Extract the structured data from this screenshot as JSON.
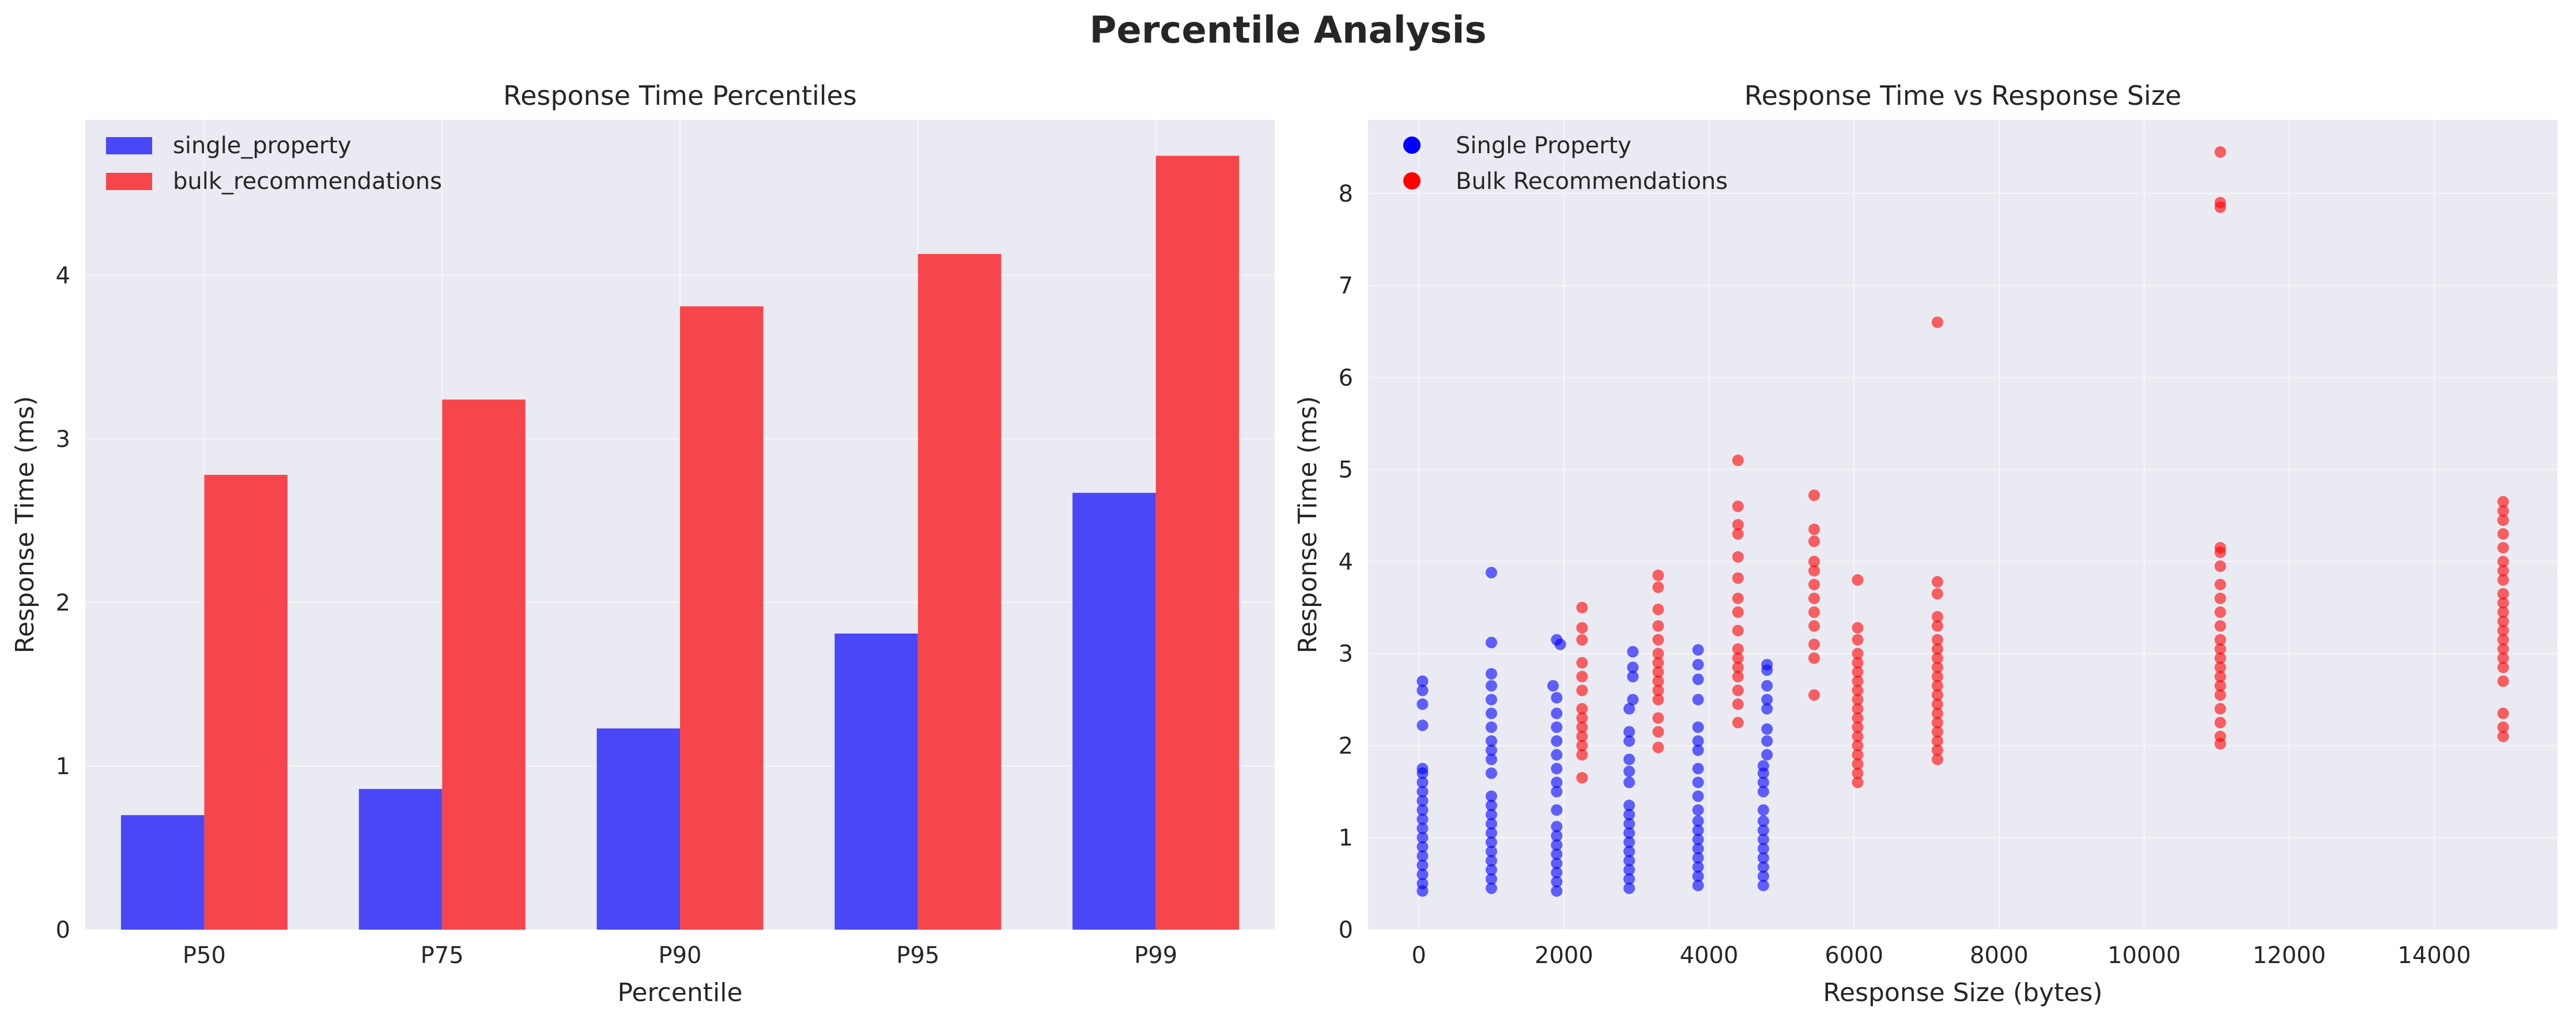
{
  "figure": {
    "title": "Percentile Analysis"
  },
  "chart_data": [
    {
      "type": "bar",
      "title": "Response Time Percentiles",
      "xlabel": "Percentile",
      "ylabel": "Response Time (ms)",
      "categories": [
        "P50",
        "P75",
        "P90",
        "P95",
        "P99"
      ],
      "series": [
        {
          "name": "single_property",
          "color": "#4a47f7",
          "values": [
            0.7,
            0.86,
            1.23,
            1.81,
            2.67
          ]
        },
        {
          "name": "bulk_recommendations",
          "color": "#f7454c",
          "values": [
            2.78,
            3.24,
            3.81,
            4.13,
            4.73
          ]
        }
      ],
      "ylim": [
        0,
        4.95
      ],
      "yticks": [
        0,
        1,
        2,
        3,
        4
      ],
      "grid": true,
      "legend": "upper-left"
    },
    {
      "type": "scatter",
      "title": "Response Time vs Response Size",
      "xlabel": "Response Size (bytes)",
      "ylabel": "Response Time (ms)",
      "xlim": [
        -700,
        15700
      ],
      "ylim": [
        0,
        8.8
      ],
      "xticks": [
        0,
        2000,
        4000,
        6000,
        8000,
        10000,
        12000,
        14000
      ],
      "yticks": [
        0,
        1,
        2,
        3,
        4,
        5,
        6,
        7,
        8
      ],
      "grid": true,
      "legend": "upper-left",
      "series": [
        {
          "name": "Single Property",
          "color": "#0000ff",
          "points": [
            [
              50,
              0.42
            ],
            [
              50,
              0.5
            ],
            [
              50,
              0.6
            ],
            [
              50,
              0.7
            ],
            [
              50,
              0.8
            ],
            [
              50,
              0.9
            ],
            [
              50,
              1.0
            ],
            [
              50,
              1.1
            ],
            [
              50,
              1.2
            ],
            [
              50,
              1.3
            ],
            [
              50,
              1.4
            ],
            [
              50,
              1.5
            ],
            [
              50,
              1.6
            ],
            [
              50,
              1.7
            ],
            [
              50,
              1.75
            ],
            [
              50,
              2.22
            ],
            [
              50,
              2.45
            ],
            [
              50,
              2.6
            ],
            [
              50,
              2.7
            ],
            [
              1000,
              0.45
            ],
            [
              1000,
              0.55
            ],
            [
              1000,
              0.65
            ],
            [
              1000,
              0.75
            ],
            [
              1000,
              0.85
            ],
            [
              1000,
              0.95
            ],
            [
              1000,
              1.05
            ],
            [
              1000,
              1.15
            ],
            [
              1000,
              1.25
            ],
            [
              1000,
              1.35
            ],
            [
              1000,
              1.45
            ],
            [
              1000,
              1.7
            ],
            [
              1000,
              1.85
            ],
            [
              1000,
              1.95
            ],
            [
              1000,
              2.05
            ],
            [
              1000,
              2.2
            ],
            [
              1000,
              2.35
            ],
            [
              1000,
              2.5
            ],
            [
              1000,
              2.65
            ],
            [
              1000,
              2.78
            ],
            [
              1000,
              3.12
            ],
            [
              1000,
              3.88
            ],
            [
              1900,
              0.42
            ],
            [
              1900,
              0.52
            ],
            [
              1900,
              0.62
            ],
            [
              1900,
              0.72
            ],
            [
              1900,
              0.82
            ],
            [
              1900,
              0.92
            ],
            [
              1900,
              1.02
            ],
            [
              1900,
              1.12
            ],
            [
              1900,
              1.3
            ],
            [
              1900,
              1.5
            ],
            [
              1900,
              1.6
            ],
            [
              1900,
              1.75
            ],
            [
              1900,
              1.9
            ],
            [
              1900,
              2.05
            ],
            [
              1900,
              2.2
            ],
            [
              1900,
              2.35
            ],
            [
              1900,
              2.52
            ],
            [
              1900,
              3.15
            ],
            [
              1950,
              3.1
            ],
            [
              1850,
              2.65
            ],
            [
              2900,
              0.45
            ],
            [
              2900,
              0.55
            ],
            [
              2900,
              0.65
            ],
            [
              2900,
              0.75
            ],
            [
              2900,
              0.85
            ],
            [
              2900,
              0.95
            ],
            [
              2900,
              1.05
            ],
            [
              2900,
              1.15
            ],
            [
              2900,
              1.25
            ],
            [
              2900,
              1.35
            ],
            [
              2900,
              1.6
            ],
            [
              2900,
              1.72
            ],
            [
              2900,
              1.85
            ],
            [
              2900,
              2.05
            ],
            [
              2900,
              2.15
            ],
            [
              2900,
              2.4
            ],
            [
              2950,
              2.5
            ],
            [
              2950,
              2.75
            ],
            [
              2950,
              2.85
            ],
            [
              2950,
              3.02
            ],
            [
              3850,
              0.48
            ],
            [
              3850,
              0.58
            ],
            [
              3850,
              0.68
            ],
            [
              3850,
              0.78
            ],
            [
              3850,
              0.88
            ],
            [
              3850,
              0.98
            ],
            [
              3850,
              1.08
            ],
            [
              3850,
              1.18
            ],
            [
              3850,
              1.3
            ],
            [
              3850,
              1.45
            ],
            [
              3850,
              1.6
            ],
            [
              3850,
              1.75
            ],
            [
              3850,
              1.95
            ],
            [
              3850,
              2.05
            ],
            [
              3850,
              2.2
            ],
            [
              3850,
              2.5
            ],
            [
              3850,
              2.72
            ],
            [
              3850,
              2.88
            ],
            [
              3850,
              3.04
            ],
            [
              4750,
              0.48
            ],
            [
              4750,
              0.58
            ],
            [
              4750,
              0.68
            ],
            [
              4750,
              0.78
            ],
            [
              4750,
              0.88
            ],
            [
              4750,
              0.98
            ],
            [
              4750,
              1.08
            ],
            [
              4750,
              1.18
            ],
            [
              4750,
              1.3
            ],
            [
              4750,
              1.5
            ],
            [
              4750,
              1.6
            ],
            [
              4750,
              1.7
            ],
            [
              4750,
              1.78
            ],
            [
              4800,
              1.9
            ],
            [
              4800,
              2.05
            ],
            [
              4800,
              2.18
            ],
            [
              4800,
              2.4
            ],
            [
              4800,
              2.5
            ],
            [
              4800,
              2.65
            ],
            [
              4800,
              2.82
            ],
            [
              4800,
              2.88
            ]
          ]
        },
        {
          "name": "Bulk Recommendations",
          "color": "#ff0000",
          "points": [
            [
              2250,
              1.65
            ],
            [
              2250,
              1.9
            ],
            [
              2250,
              2.0
            ],
            [
              2250,
              2.1
            ],
            [
              2250,
              2.2
            ],
            [
              2250,
              2.3
            ],
            [
              2250,
              2.4
            ],
            [
              2250,
              2.6
            ],
            [
              2250,
              2.75
            ],
            [
              2250,
              2.9
            ],
            [
              2250,
              3.15
            ],
            [
              2250,
              3.28
            ],
            [
              2250,
              3.5
            ],
            [
              3300,
              1.98
            ],
            [
              3300,
              2.15
            ],
            [
              3300,
              2.3
            ],
            [
              3300,
              2.5
            ],
            [
              3300,
              2.6
            ],
            [
              3300,
              2.7
            ],
            [
              3300,
              2.8
            ],
            [
              3300,
              2.9
            ],
            [
              3300,
              3.0
            ],
            [
              3300,
              3.15
            ],
            [
              3300,
              3.3
            ],
            [
              3300,
              3.48
            ],
            [
              3300,
              3.72
            ],
            [
              3300,
              3.85
            ],
            [
              4400,
              2.25
            ],
            [
              4400,
              2.45
            ],
            [
              4400,
              2.6
            ],
            [
              4400,
              2.75
            ],
            [
              4400,
              2.85
            ],
            [
              4400,
              2.95
            ],
            [
              4400,
              3.05
            ],
            [
              4400,
              3.25
            ],
            [
              4400,
              3.45
            ],
            [
              4400,
              3.6
            ],
            [
              4400,
              3.82
            ],
            [
              4400,
              4.05
            ],
            [
              4400,
              4.3
            ],
            [
              4400,
              4.4
            ],
            [
              4400,
              4.6
            ],
            [
              4400,
              5.1
            ],
            [
              5450,
              2.55
            ],
            [
              5450,
              2.95
            ],
            [
              5450,
              3.1
            ],
            [
              5450,
              3.3
            ],
            [
              5450,
              3.45
            ],
            [
              5450,
              3.6
            ],
            [
              5450,
              3.75
            ],
            [
              5450,
              3.9
            ],
            [
              5450,
              4.0
            ],
            [
              5450,
              4.22
            ],
            [
              5450,
              4.35
            ],
            [
              5450,
              4.72
            ],
            [
              6050,
              1.6
            ],
            [
              6050,
              1.7
            ],
            [
              6050,
              1.8
            ],
            [
              6050,
              1.9
            ],
            [
              6050,
              2.0
            ],
            [
              6050,
              2.1
            ],
            [
              6050,
              2.2
            ],
            [
              6050,
              2.3
            ],
            [
              6050,
              2.4
            ],
            [
              6050,
              2.5
            ],
            [
              6050,
              2.6
            ],
            [
              6050,
              2.7
            ],
            [
              6050,
              2.8
            ],
            [
              6050,
              2.9
            ],
            [
              6050,
              3.0
            ],
            [
              6050,
              3.15
            ],
            [
              6050,
              3.28
            ],
            [
              6050,
              3.8
            ],
            [
              7150,
              1.85
            ],
            [
              7150,
              1.95
            ],
            [
              7150,
              2.05
            ],
            [
              7150,
              2.15
            ],
            [
              7150,
              2.25
            ],
            [
              7150,
              2.35
            ],
            [
              7150,
              2.45
            ],
            [
              7150,
              2.55
            ],
            [
              7150,
              2.65
            ],
            [
              7150,
              2.75
            ],
            [
              7150,
              2.85
            ],
            [
              7150,
              2.95
            ],
            [
              7150,
              3.05
            ],
            [
              7150,
              3.15
            ],
            [
              7150,
              3.3
            ],
            [
              7150,
              3.4
            ],
            [
              7150,
              3.65
            ],
            [
              7150,
              3.78
            ],
            [
              7150,
              6.6
            ],
            [
              11050,
              2.02
            ],
            [
              11050,
              2.1
            ],
            [
              11050,
              2.25
            ],
            [
              11050,
              2.4
            ],
            [
              11050,
              2.55
            ],
            [
              11050,
              2.65
            ],
            [
              11050,
              2.75
            ],
            [
              11050,
              2.85
            ],
            [
              11050,
              2.95
            ],
            [
              11050,
              3.05
            ],
            [
              11050,
              3.15
            ],
            [
              11050,
              3.3
            ],
            [
              11050,
              3.45
            ],
            [
              11050,
              3.6
            ],
            [
              11050,
              3.75
            ],
            [
              11050,
              3.95
            ],
            [
              11050,
              4.1
            ],
            [
              11050,
              4.15
            ],
            [
              11050,
              7.85
            ],
            [
              11050,
              7.9
            ],
            [
              11050,
              8.45
            ],
            [
              14950,
              2.1
            ],
            [
              14950,
              2.2
            ],
            [
              14950,
              2.35
            ],
            [
              14950,
              2.7
            ],
            [
              14950,
              2.85
            ],
            [
              14950,
              2.95
            ],
            [
              14950,
              3.05
            ],
            [
              14950,
              3.15
            ],
            [
              14950,
              3.25
            ],
            [
              14950,
              3.35
            ],
            [
              14950,
              3.45
            ],
            [
              14950,
              3.55
            ],
            [
              14950,
              3.65
            ],
            [
              14950,
              3.8
            ],
            [
              14950,
              3.9
            ],
            [
              14950,
              4.0
            ],
            [
              14950,
              4.15
            ],
            [
              14950,
              4.3
            ],
            [
              14950,
              4.45
            ],
            [
              14950,
              4.55
            ],
            [
              14950,
              4.65
            ]
          ]
        }
      ]
    }
  ]
}
